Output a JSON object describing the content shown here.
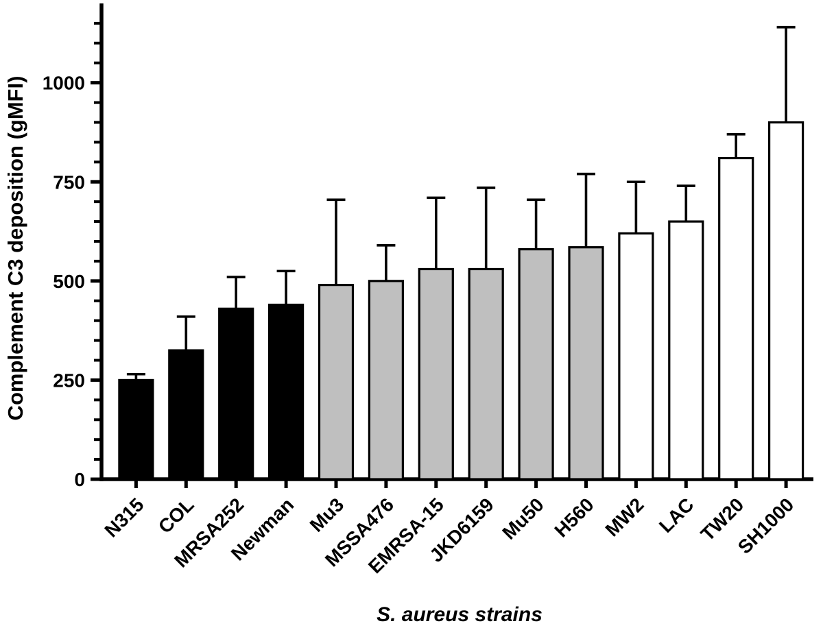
{
  "chart_data": {
    "type": "bar",
    "xlabel": "S. aureus strains",
    "ylabel": "Complement C3 deposition (gMFI)",
    "categories": [
      "N315",
      "COL",
      "MRSA252",
      "Newman",
      "Mu3",
      "MSSA476",
      "EMRSA-15",
      "JKD6159",
      "Mu50",
      "H560",
      "MW2",
      "LAC",
      "TW20",
      "SH1000"
    ],
    "series": [
      {
        "name": "Complement C3 deposition (gMFI)",
        "values": [
          250,
          325,
          430,
          440,
          490,
          500,
          530,
          530,
          580,
          585,
          620,
          650,
          810,
          900
        ],
        "error_plus": [
          15,
          85,
          80,
          85,
          215,
          90,
          180,
          205,
          125,
          185,
          130,
          90,
          60,
          240
        ]
      }
    ],
    "bar_fills": [
      "#000000",
      "#000000",
      "#000000",
      "#000000",
      "#bfbfbf",
      "#bfbfbf",
      "#bfbfbf",
      "#bfbfbf",
      "#bfbfbf",
      "#bfbfbf",
      "#ffffff",
      "#ffffff",
      "#ffffff",
      "#ffffff"
    ],
    "bar_edge_color": "#000000",
    "error_bar_color": "#000000",
    "axis_color": "#000000",
    "background": "#ffffff",
    "ylim": [
      0,
      1200
    ],
    "yticks": [
      0,
      250,
      500,
      750,
      1000
    ],
    "minor_tick_step": 50,
    "grid": false,
    "legend_position": "none",
    "x_label_rotation_deg": -45
  }
}
